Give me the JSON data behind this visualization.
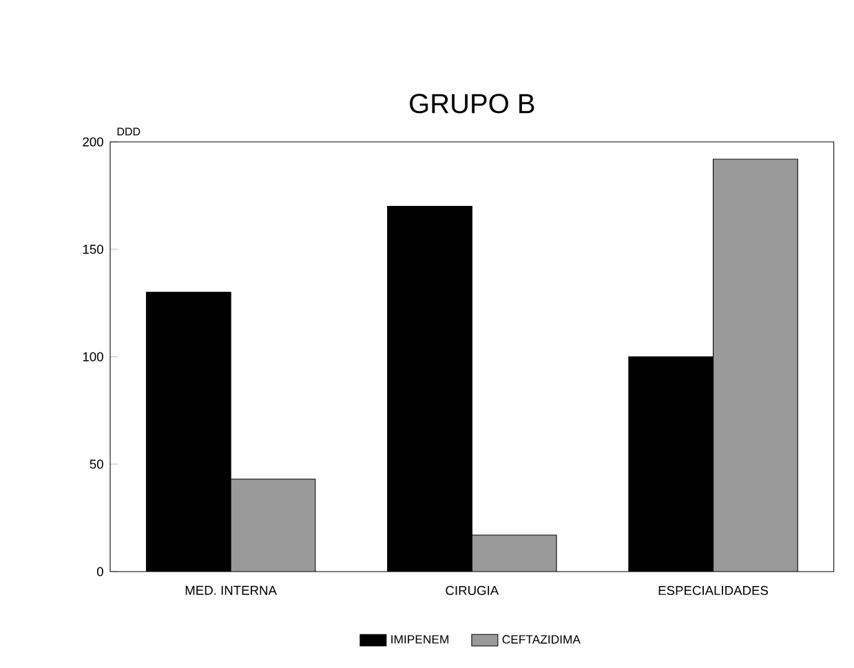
{
  "chart_data": {
    "type": "bar",
    "title": "GRUPO B",
    "ylabel": "DDD",
    "categories": [
      "MED. INTERNA",
      "CIRUGIA",
      "ESPECIALIDADES"
    ],
    "series": [
      {
        "name": "IMIPENEM",
        "color": "#000000",
        "values": [
          130,
          170,
          100
        ]
      },
      {
        "name": "CEFTAZIDIMA",
        "color": "#9a9a9a",
        "values": [
          43,
          17,
          192
        ]
      }
    ],
    "ylim": [
      0,
      200
    ],
    "yticks": [
      0,
      50,
      100,
      150,
      200
    ],
    "legend": "bottom"
  }
}
